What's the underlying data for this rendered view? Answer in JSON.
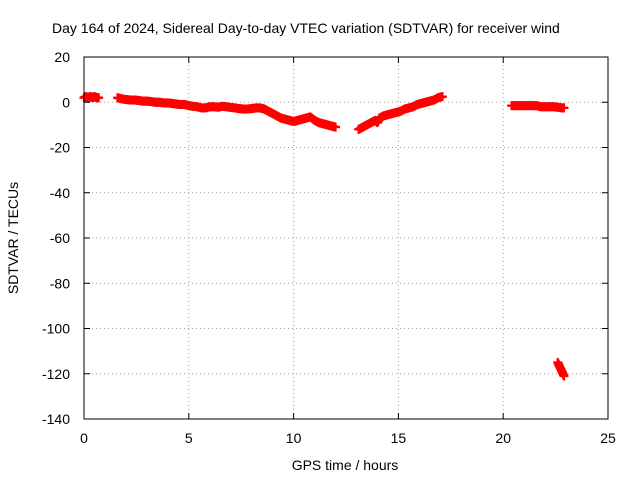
{
  "chart_data": {
    "type": "scatter",
    "title": "Day 164 of 2024, Sidereal Day-to-day VTEC variation (SDTVAR) for receiver wind",
    "xlabel": "GPS time / hours",
    "ylabel": "SDTVAR / TECUs",
    "xlim": [
      0,
      25
    ],
    "ylim": [
      -140,
      20
    ],
    "xticks": [
      0,
      5,
      10,
      15,
      20,
      25
    ],
    "yticks": [
      20,
      0,
      -20,
      -40,
      -60,
      -80,
      -100,
      -120,
      -140
    ],
    "grid": true,
    "marker": "plus",
    "colors": {
      "series": "#ff0000",
      "grid": "#a0a0a0",
      "axis": "#000000"
    },
    "series": [
      {
        "name": "SDTVAR",
        "x": [
          0.0,
          0.1,
          0.2,
          0.3,
          0.4,
          0.5,
          0.6,
          0.7,
          1.6,
          1.8,
          2.0,
          2.2,
          2.4,
          2.6,
          2.8,
          3.0,
          3.2,
          3.4,
          3.6,
          3.8,
          4.0,
          4.2,
          4.4,
          4.6,
          4.8,
          5.0,
          5.2,
          5.4,
          5.6,
          5.8,
          6.0,
          6.2,
          6.4,
          6.6,
          6.8,
          7.0,
          7.2,
          7.4,
          7.6,
          7.8,
          8.0,
          8.2,
          8.4,
          8.6,
          8.8,
          9.0,
          9.2,
          9.4,
          9.6,
          9.8,
          10.0,
          10.2,
          10.4,
          10.6,
          10.8,
          11.0,
          11.2,
          11.4,
          11.6,
          11.8,
          12.0,
          13.1,
          13.3,
          13.5,
          13.7,
          13.9,
          14.0,
          14.1,
          14.3,
          14.5,
          14.7,
          14.9,
          15.1,
          15.3,
          15.5,
          15.7,
          15.9,
          16.1,
          16.3,
          16.5,
          16.7,
          16.9,
          17.1,
          20.4,
          20.6,
          20.8,
          21.0,
          21.2,
          21.4,
          21.6,
          21.8,
          22.0,
          22.2,
          22.4,
          22.6,
          22.8,
          22.9,
          22.6,
          22.7,
          22.8,
          22.9
        ],
        "y": [
          2,
          2.5,
          2,
          2.5,
          2,
          2.5,
          2,
          2,
          2,
          1.5,
          1.2,
          1,
          1,
          0.8,
          0.5,
          0.5,
          0.3,
          0,
          0,
          -0.3,
          -0.3,
          -0.5,
          -0.8,
          -1,
          -1,
          -1.5,
          -1.8,
          -2,
          -2.5,
          -2.5,
          -2,
          -2,
          -2.2,
          -1.8,
          -2,
          -2.3,
          -2.5,
          -2.8,
          -3,
          -3,
          -2.8,
          -2.5,
          -2.5,
          -3,
          -4,
          -5,
          -6,
          -7,
          -7.5,
          -8,
          -8.5,
          -8,
          -7.5,
          -7,
          -6.5,
          -8,
          -9,
          -9.5,
          -10,
          -10.5,
          -11,
          -12,
          -11,
          -10,
          -9,
          -8,
          -9,
          -7,
          -6,
          -5.5,
          -5,
          -4.5,
          -4,
          -3,
          -2.5,
          -2,
          -1,
          -0.5,
          0,
          0.5,
          1,
          2,
          2.5,
          -1.5,
          -1.5,
          -1.5,
          -1.5,
          -1.5,
          -1.5,
          -1.5,
          -2,
          -2,
          -2,
          -2,
          -2.2,
          -2.5,
          -2.5,
          -115,
          -117,
          -119,
          -121
        ]
      }
    ]
  }
}
